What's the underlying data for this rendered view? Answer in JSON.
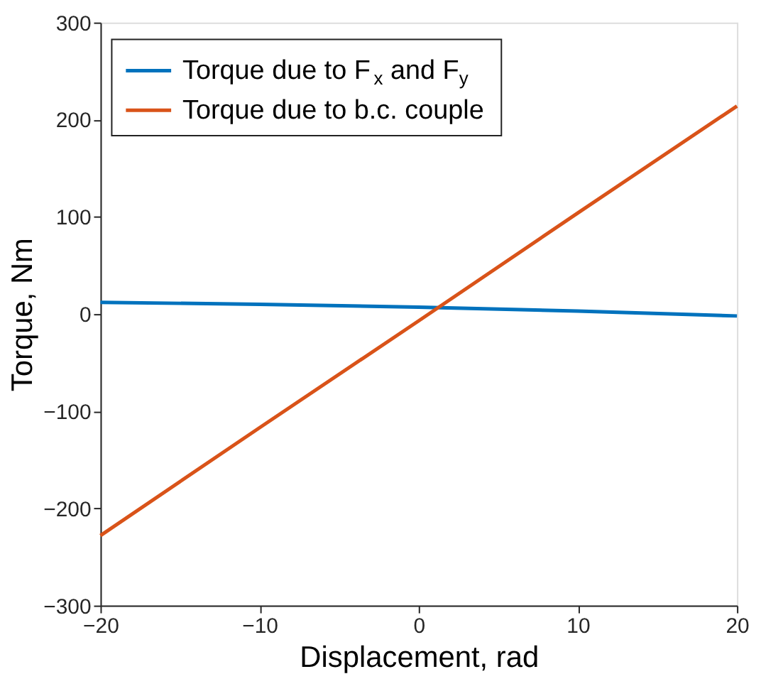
{
  "chart_data": {
    "type": "line",
    "xlabel": "Displacement, rad",
    "ylabel": "Torque, Nm",
    "x": [
      -20,
      -10,
      0,
      10,
      20
    ],
    "series": [
      {
        "name": "Torque due to F$_{x}$ and F$_{y}$",
        "color": "#0072bd",
        "values": [
          12,
          10,
          7,
          3,
          -2
        ]
      },
      {
        "name": "Torque due to b.c. couple",
        "color": "#d95319",
        "values": [
          -228,
          -117,
          -7,
          104,
          214
        ]
      }
    ],
    "xlim": [
      -20,
      20
    ],
    "xticks": [
      -20,
      -10,
      0,
      10,
      20
    ],
    "ylim": [
      -300,
      300
    ],
    "yticks": [
      -300,
      -200,
      -100,
      0,
      100,
      200,
      300
    ],
    "grid": false,
    "legend": "top left",
    "marker": "none",
    "line_style": "solid"
  }
}
